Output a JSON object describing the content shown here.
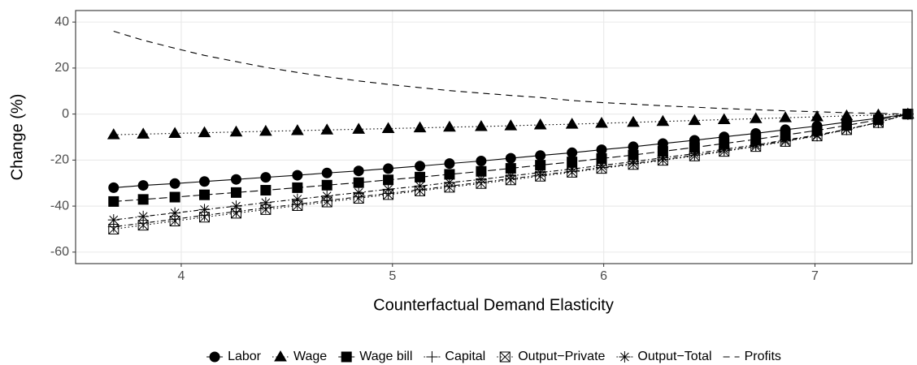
{
  "chart_data": {
    "type": "line",
    "x_label": "Counterfactual Demand Elasticity",
    "y_label": "Change (%)",
    "x": [
      3.68,
      3.82,
      3.97,
      4.11,
      4.26,
      4.4,
      4.55,
      4.69,
      4.84,
      4.98,
      5.13,
      5.27,
      5.42,
      5.56,
      5.7,
      5.85,
      5.99,
      6.14,
      6.28,
      6.43,
      6.57,
      6.72,
      6.86,
      7.01,
      7.15,
      7.3,
      7.44
    ],
    "series": [
      {
        "name": "Labor",
        "color": "#000000",
        "linetype": "solid",
        "marker": "circle",
        "values": [
          -32,
          -31,
          -30.2,
          -29.3,
          -28.4,
          -27.5,
          -26.6,
          -25.6,
          -24.7,
          -23.7,
          -22.6,
          -21.5,
          -20.4,
          -19.2,
          -18,
          -16.8,
          -15.5,
          -14.2,
          -12.8,
          -11.4,
          -9.9,
          -8.4,
          -6.8,
          -5.2,
          -3.5,
          -1.8,
          0
        ]
      },
      {
        "name": "Wage",
        "color": "#000000",
        "linetype": "dotted",
        "marker": "triangle",
        "values": [
          -9,
          -8.7,
          -8.4,
          -8.1,
          -7.8,
          -7.5,
          -7.2,
          -6.9,
          -6.6,
          -6.3,
          -6,
          -5.7,
          -5.4,
          -5.1,
          -4.7,
          -4.4,
          -4,
          -3.6,
          -3.2,
          -2.8,
          -2.4,
          -2,
          -1.6,
          -1.2,
          -0.8,
          -0.4,
          0
        ]
      },
      {
        "name": "Wage bill",
        "color": "#000000",
        "linetype": "longdash",
        "marker": "square",
        "values": [
          -38,
          -37.1,
          -36.1,
          -35.1,
          -34.1,
          -33.1,
          -32,
          -30.9,
          -29.8,
          -28.6,
          -27.4,
          -26.2,
          -24.9,
          -23.6,
          -22.2,
          -20.8,
          -19.3,
          -17.8,
          -16.2,
          -14.5,
          -12.8,
          -11,
          -9.1,
          -7.1,
          -4.9,
          -2.5,
          0
        ]
      },
      {
        "name": "Capital",
        "color": "#000000",
        "linetype": "dotdash",
        "marker": "plus",
        "values": [
          -49,
          -47.4,
          -45.7,
          -44,
          -42.4,
          -40.8,
          -39.2,
          -37.6,
          -36,
          -34.5,
          -32.9,
          -31.3,
          -29.7,
          -28.1,
          -26.5,
          -24.9,
          -23.2,
          -21.5,
          -19.8,
          -17.9,
          -16,
          -13.9,
          -11.7,
          -9.4,
          -6.7,
          -3.6,
          0
        ]
      },
      {
        "name": "Output−Private",
        "color": "#000000",
        "linetype": "dotted",
        "marker": "boxcross",
        "values": [
          -50,
          -48.3,
          -46.5,
          -44.8,
          -43.1,
          -41.5,
          -39.8,
          -38.2,
          -36.6,
          -35,
          -33.4,
          -31.8,
          -30.2,
          -28.6,
          -27,
          -25.3,
          -23.6,
          -21.9,
          -20.1,
          -18.2,
          -16.2,
          -14.1,
          -11.9,
          -9.5,
          -6.8,
          -3.7,
          0
        ]
      },
      {
        "name": "Output−Total",
        "color": "#000000",
        "linetype": "dotdash",
        "marker": "asterisk",
        "values": [
          -46,
          -44.5,
          -43,
          -41.5,
          -40,
          -38.5,
          -37,
          -35.6,
          -34.1,
          -32.7,
          -31.3,
          -29.8,
          -28.4,
          -26.9,
          -25.4,
          -23.9,
          -22.3,
          -20.7,
          -19,
          -17.2,
          -15.3,
          -13.4,
          -11.3,
          -9.1,
          -6.6,
          -3.6,
          0
        ]
      },
      {
        "name": "Profits",
        "color": "#000000",
        "linetype": "dashed",
        "marker": "none",
        "values": [
          36,
          32.1,
          28.6,
          25.5,
          22.8,
          20.3,
          18.1,
          16.2,
          14.4,
          12.9,
          11.5,
          10.2,
          9.1,
          8.1,
          7.2,
          5.9,
          5.0,
          4.3,
          3.6,
          3.0,
          2.4,
          1.9,
          1.4,
          1.0,
          0.6,
          0.3,
          0
        ]
      }
    ],
    "xlim": [
      3.5,
      7.46
    ],
    "xticks": [
      4,
      5,
      6,
      7
    ],
    "ylim": [
      -65,
      45
    ],
    "yticks": [
      -60,
      -40,
      -20,
      0,
      20,
      40
    ],
    "grid": true,
    "legend": "bottom"
  }
}
